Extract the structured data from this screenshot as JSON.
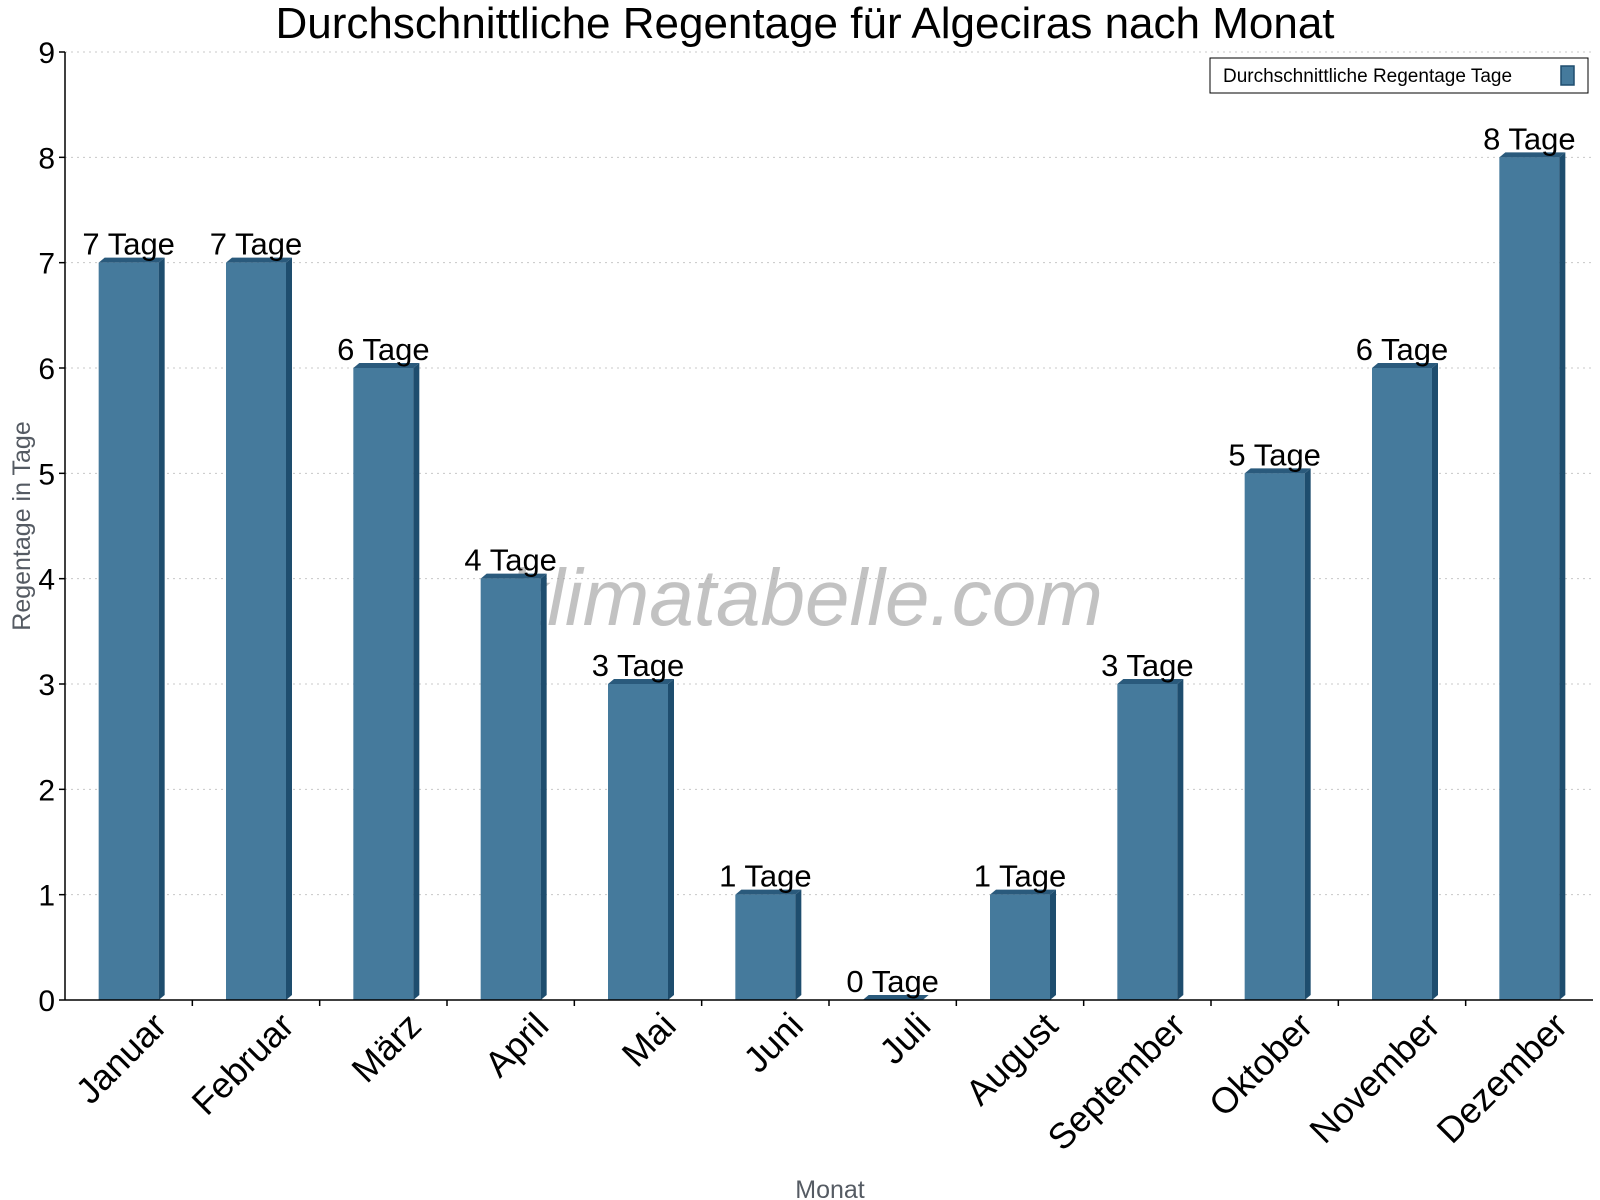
{
  "chart_data": {
    "type": "bar",
    "title": "Durchschnittliche Regentage für Algeciras nach Monat",
    "xlabel": "Monat",
    "ylabel": "Regentage in Tage",
    "categories": [
      "Januar",
      "Februar",
      "März",
      "April",
      "Mai",
      "Juni",
      "Juli",
      "August",
      "September",
      "Oktober",
      "November",
      "Dezember"
    ],
    "series": [
      {
        "name": "Durchschnittliche Regentage Tage",
        "values": [
          7,
          7,
          6,
          4,
          3,
          1,
          0,
          1,
          3,
          5,
          6,
          8
        ]
      }
    ],
    "data_labels": [
      "7 Tage",
      "7 Tage",
      "6 Tage",
      "4 Tage",
      "3 Tage",
      "1 Tage",
      "0 Tage",
      "1 Tage",
      "3 Tage",
      "5 Tage",
      "6 Tage",
      "8 Tage"
    ],
    "yticks": [
      "0",
      "1",
      "2",
      "3",
      "4",
      "5",
      "6",
      "7",
      "8",
      "9"
    ],
    "ylim": [
      0,
      9
    ],
    "grid": true,
    "legend_position": "top-right",
    "watermark": "klimatabelle.com",
    "colors": {
      "bar_face": "#457a9c",
      "bar_side": "#1e4d6e",
      "bar_top": "#2a5a7c",
      "grid": "#c8c8c8",
      "axis": "#000000"
    }
  }
}
